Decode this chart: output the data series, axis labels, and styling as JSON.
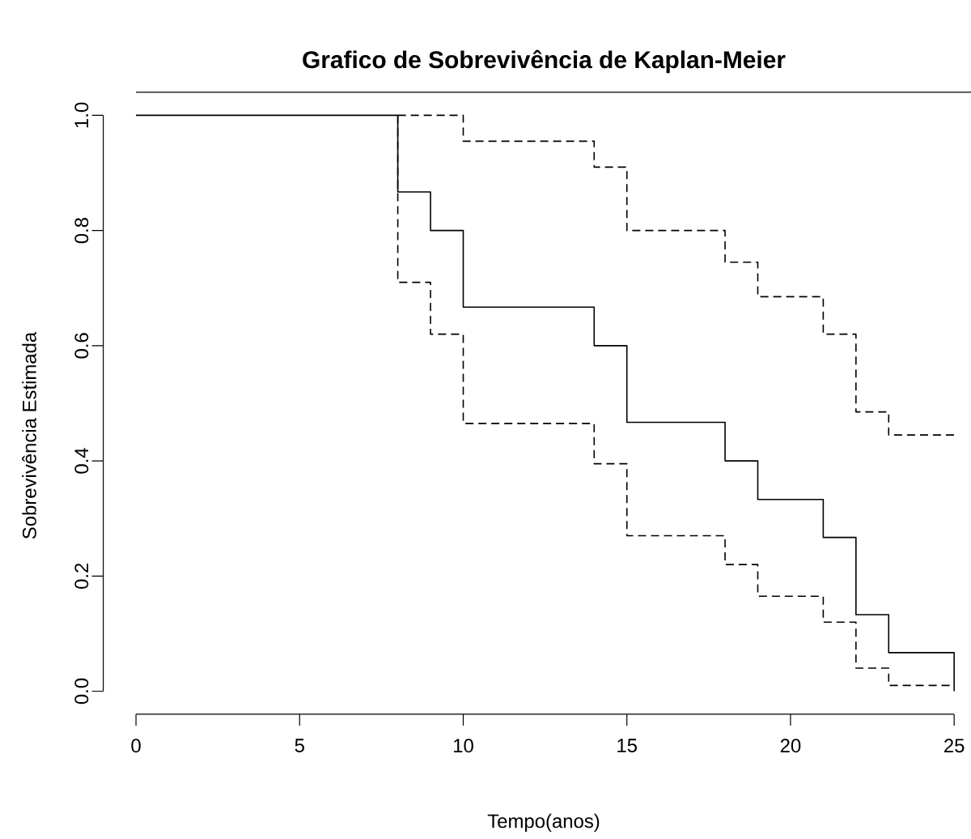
{
  "chart_data": {
    "type": "step",
    "title": "Grafico de Sobrevivência de Kaplan-Meier",
    "xlabel": "Tempo(anos)",
    "ylabel": "Sobrevivência Estimada",
    "xlim": [
      -1,
      26
    ],
    "ylim": [
      -0.04,
      1.04
    ],
    "xticks": [
      0,
      5,
      10,
      15,
      20,
      25
    ],
    "yticks": [
      {
        "value": 0,
        "label": "0.0"
      },
      {
        "value": 0.2,
        "label": "0.2"
      },
      {
        "value": 0.4,
        "label": "0.4"
      },
      {
        "value": 0.6,
        "label": "0.6"
      },
      {
        "value": 0.8,
        "label": "0.8"
      },
      {
        "value": 1,
        "label": "1.0"
      }
    ],
    "series": [
      {
        "color": "#000000",
        "line_style": "solid",
        "x": [
          0,
          8,
          9,
          10,
          14,
          15,
          18,
          19,
          21,
          22,
          23,
          25
        ],
        "values": [
          1,
          0.867,
          0.8,
          0.667,
          0.6,
          0.467,
          0.4,
          0.333,
          0.267,
          0.133,
          0.067,
          0
        ]
      },
      {
        "color": "#000000",
        "line_style": "dashed",
        "x": [
          8,
          10,
          14,
          15,
          18,
          19,
          21,
          22,
          23,
          25
        ],
        "values": [
          1,
          0.955,
          0.91,
          0.8,
          0.745,
          0.685,
          0.62,
          0.485,
          0.445,
          0.445
        ]
      },
      {
        "color": "#000000",
        "line_style": "dashed",
        "x": [
          8,
          8,
          9,
          10,
          14,
          15,
          18,
          19,
          21,
          22,
          23,
          25
        ],
        "values": [
          1,
          0.71,
          0.62,
          0.465,
          0.395,
          0.27,
          0.22,
          0.165,
          0.12,
          0.04,
          0.01,
          0.01
        ]
      }
    ]
  }
}
